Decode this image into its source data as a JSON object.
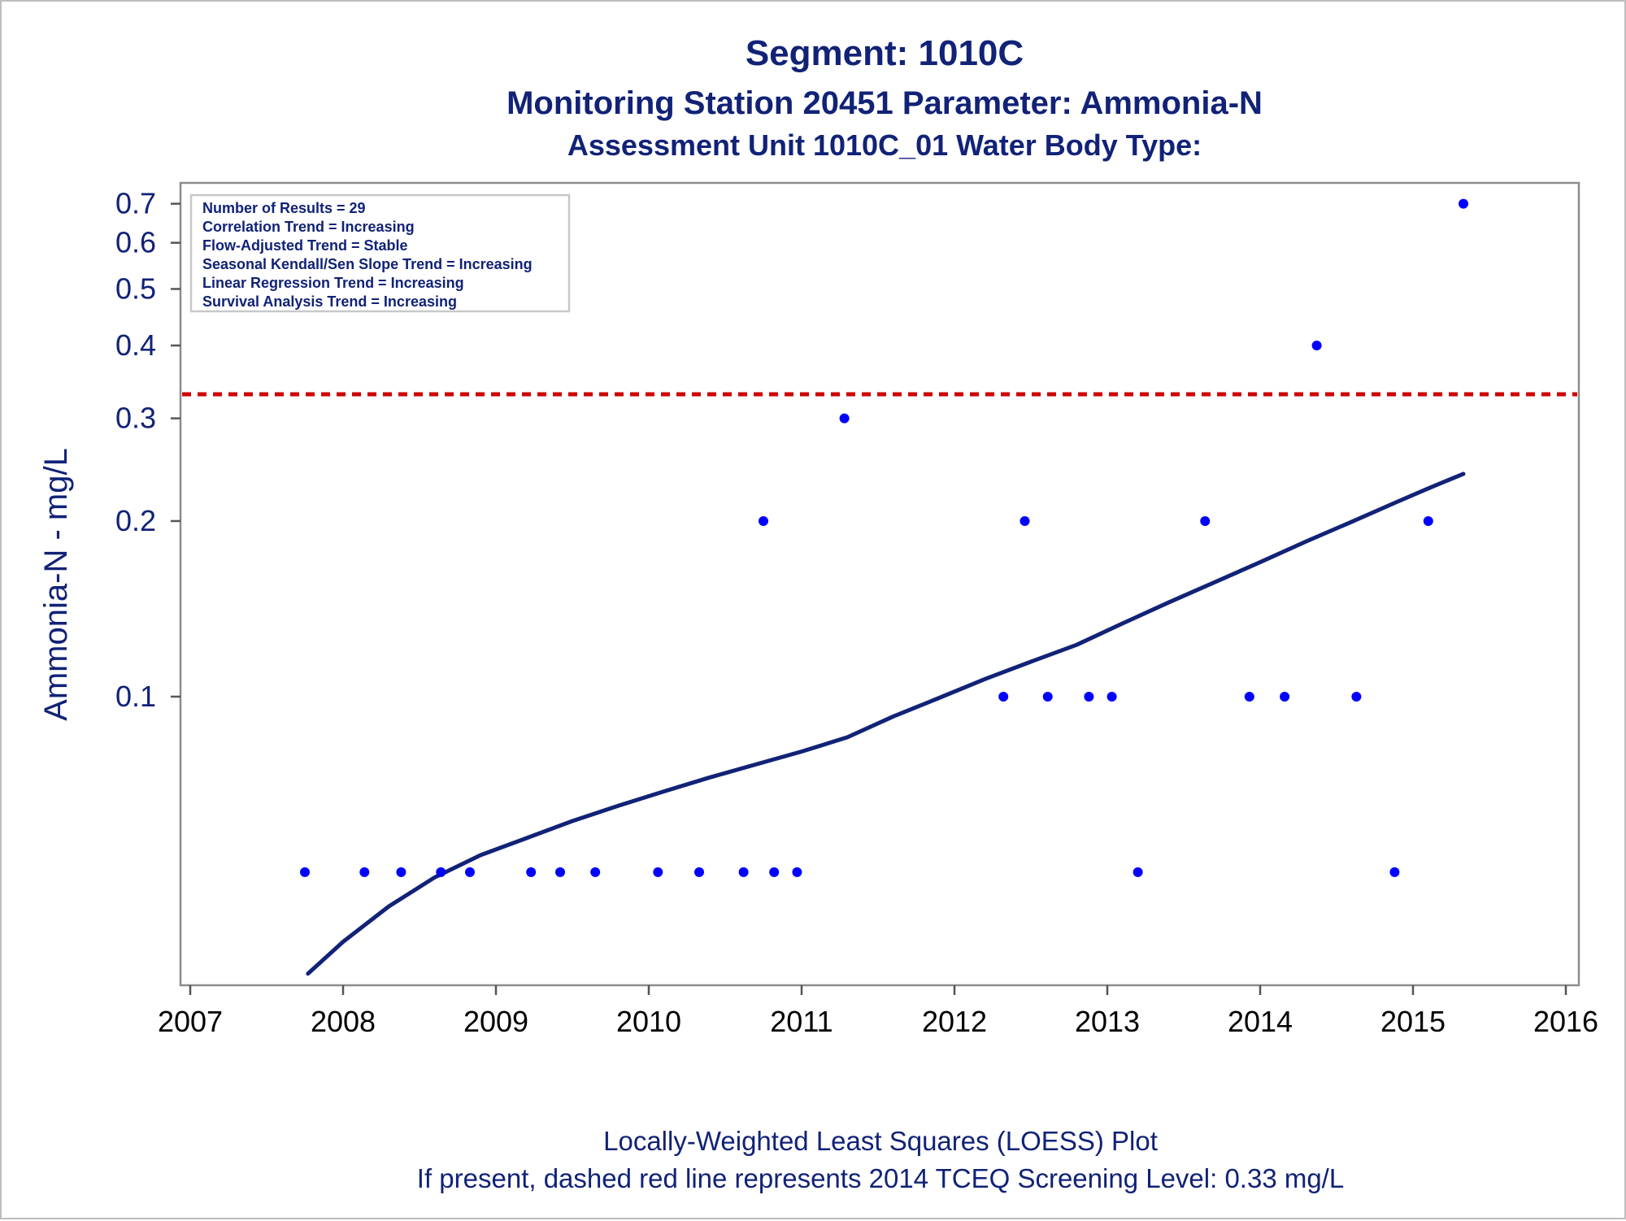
{
  "titles": {
    "line1": "Segment: 1010C",
    "line2": "Monitoring Station 20451 Parameter: Ammonia-N",
    "line3": "Assessment Unit 1010C_01   Water Body Type:"
  },
  "footnotes": {
    "line1": "Locally-Weighted Least Squares (LOESS) Plot",
    "line2": "If present, dashed red line represents 2014 TCEQ Screening Level: 0.33 mg/L"
  },
  "stats_box": [
    "Number of Results = 29",
    "Correlation Trend = Increasing",
    "Flow-Adjusted Trend = Stable",
    "Seasonal Kendall/Sen Slope Trend = Increasing",
    "Linear Regression Trend = Increasing",
    "Survival Analysis Trend = Increasing"
  ],
  "chart_data": {
    "type": "scatter",
    "title": "Segment: 1010C",
    "xlabel": "",
    "ylabel": "Ammonia-N - mg/L",
    "y_scale": "log",
    "xlim": [
      2007,
      2016
    ],
    "ylim": [
      0.032,
      0.76
    ],
    "x_ticks": [
      2007,
      2008,
      2009,
      2010,
      2011,
      2012,
      2013,
      2014,
      2015,
      2016
    ],
    "y_ticks": [
      0.1,
      0.2,
      0.3,
      0.4,
      0.5,
      0.6,
      0.7
    ],
    "y_tick_labels": [
      "0.1",
      "0.2",
      "0.3",
      "0.4",
      "0.5",
      "0.6",
      "0.7"
    ],
    "grid": false,
    "legend": "none",
    "series": [
      {
        "type": "scatter",
        "color": "#0000ff",
        "points": [
          [
            2007.75,
            0.05
          ],
          [
            2008.14,
            0.05
          ],
          [
            2008.38,
            0.05
          ],
          [
            2008.64,
            0.05
          ],
          [
            2008.83,
            0.05
          ],
          [
            2009.23,
            0.05
          ],
          [
            2009.42,
            0.05
          ],
          [
            2009.65,
            0.05
          ],
          [
            2010.06,
            0.05
          ],
          [
            2010.33,
            0.05
          ],
          [
            2010.62,
            0.05
          ],
          [
            2010.75,
            0.2
          ],
          [
            2010.82,
            0.05
          ],
          [
            2010.97,
            0.05
          ],
          [
            2011.28,
            0.3
          ],
          [
            2012.32,
            0.1
          ],
          [
            2012.46,
            0.2
          ],
          [
            2012.61,
            0.1
          ],
          [
            2012.88,
            0.1
          ],
          [
            2013.03,
            0.1
          ],
          [
            2013.2,
            0.05
          ],
          [
            2013.64,
            0.2
          ],
          [
            2013.93,
            0.1
          ],
          [
            2014.16,
            0.1
          ],
          [
            2014.37,
            0.4
          ],
          [
            2014.63,
            0.1
          ],
          [
            2014.88,
            0.05
          ],
          [
            2015.1,
            0.2
          ],
          [
            2015.33,
            0.7
          ]
        ]
      },
      {
        "type": "line",
        "color": "#112277",
        "points": [
          [
            2007.77,
            0.0335
          ],
          [
            2008.0,
            0.038
          ],
          [
            2008.3,
            0.0437
          ],
          [
            2008.6,
            0.049
          ],
          [
            2008.9,
            0.0535
          ],
          [
            2009.2,
            0.0572
          ],
          [
            2009.5,
            0.0612
          ],
          [
            2009.8,
            0.065
          ],
          [
            2010.1,
            0.0688
          ],
          [
            2010.4,
            0.0727
          ],
          [
            2010.7,
            0.0765
          ],
          [
            2011.0,
            0.0805
          ],
          [
            2011.3,
            0.0852
          ],
          [
            2011.6,
            0.0925
          ],
          [
            2011.9,
            0.0995
          ],
          [
            2012.2,
            0.1072
          ],
          [
            2012.5,
            0.1148
          ],
          [
            2012.8,
            0.1227
          ],
          [
            2013.1,
            0.1335
          ],
          [
            2013.4,
            0.145
          ],
          [
            2013.7,
            0.157
          ],
          [
            2014.0,
            0.17
          ],
          [
            2014.3,
            0.1845
          ],
          [
            2014.6,
            0.1995
          ],
          [
            2014.9,
            0.216
          ],
          [
            2015.1,
            0.2275
          ],
          [
            2015.33,
            0.241
          ]
        ]
      }
    ],
    "reference_line": {
      "y": 0.33,
      "color": "#cc0000",
      "style": "dashed"
    }
  }
}
